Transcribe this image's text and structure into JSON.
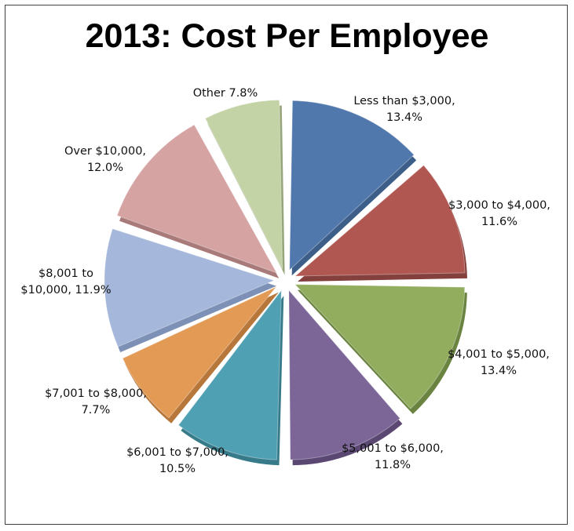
{
  "chart_data": {
    "type": "pie",
    "title": "2013: Cost Per Employee",
    "exploded": true,
    "slices": [
      {
        "label": "Less than $3,000,",
        "value": 13.4,
        "value_label": "13.4%",
        "color": "#5078ad",
        "side": "#3c5e88"
      },
      {
        "label": "$3,000 to $4,000,",
        "value": 11.6,
        "value_label": "11.6%",
        "color": "#b05752",
        "side": "#84403c"
      },
      {
        "label": "$4,001 to $5,000,",
        "value": 13.4,
        "value_label": "13.4%",
        "color": "#91ad5d",
        "side": "#6a8341"
      },
      {
        "label": "$5,001 to $6,000,",
        "value": 11.8,
        "value_label": "11.8%",
        "color": "#7c6597",
        "side": "#5a4873"
      },
      {
        "label": "$6,001 to $7,000,",
        "value": 10.5,
        "value_label": "10.5%",
        "color": "#4fa0b3",
        "side": "#377a8a"
      },
      {
        "label": "$7,001 to $8,000,",
        "value": 7.7,
        "value_label": "7.7%",
        "color": "#e39a55",
        "side": "#b7763a"
      },
      {
        "label": "$8,001 to",
        "label2": "$10,000, 11.9%",
        "value": 11.9,
        "color": "#a5b7da",
        "side": "#7d90b6"
      },
      {
        "label": "Over $10,000,",
        "value": 12.0,
        "value_label": "12.0%",
        "color": "#d6a3a3",
        "side": "#a97a7a"
      },
      {
        "label": "Other 7.8%",
        "value": 7.8,
        "color": "#c3d3a6",
        "side": "#96a67a"
      }
    ]
  }
}
